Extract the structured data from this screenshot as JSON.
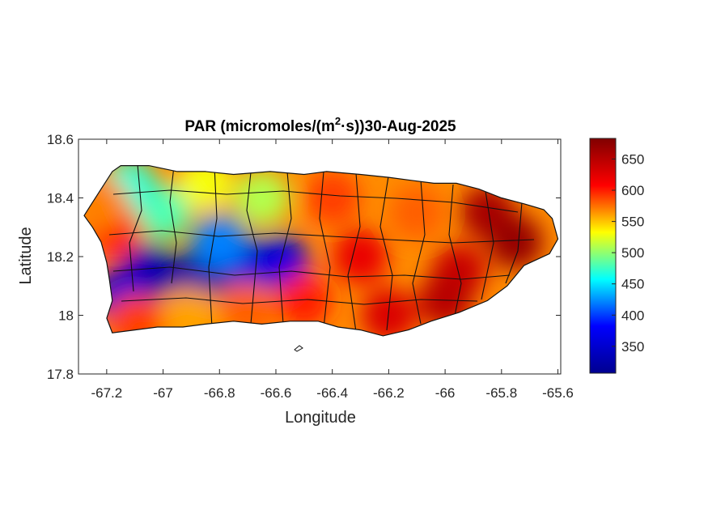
{
  "title_main": "PAR (micromoles/(m",
  "title_sup": "2",
  "title_rest": "·s))30-Aug-2025",
  "xlabel": "Longitude",
  "ylabel": "Latitude",
  "x_ticks": [
    "-67.2",
    "-67",
    "-66.8",
    "-66.6",
    "-66.4",
    "-66.2",
    "-66",
    "-65.8",
    "-65.6"
  ],
  "y_ticks": [
    "18.6",
    "18.4",
    "18.2",
    "18",
    "17.8"
  ],
  "colorbar_ticks": [
    "650",
    "600",
    "550",
    "500",
    "450",
    "400",
    "350"
  ],
  "colors": {
    "colormap": [
      "#00008f",
      "#0000ff",
      "#00ffff",
      "#ffff00",
      "#ff0000",
      "#800000"
    ]
  },
  "chart_data": {
    "type": "heatmap",
    "title": "PAR (micromoles/(m2·s))30-Aug-2025",
    "xlabel": "Longitude",
    "ylabel": "Latitude",
    "xlim": [
      -67.3,
      -65.59
    ],
    "ylim": [
      17.8,
      18.6
    ],
    "x_ticks": [
      -67.2,
      -67.0,
      -66.8,
      -66.6,
      -66.4,
      -66.2,
      -66.0,
      -65.8,
      -65.6
    ],
    "y_ticks": [
      17.8,
      18.0,
      18.2,
      18.4,
      18.6
    ],
    "colorbar": {
      "min": 307,
      "max": 683,
      "ticks": [
        350,
        400,
        450,
        500,
        550,
        600,
        650
      ],
      "colormap": "jet"
    },
    "outline": [
      [
        -67.26,
        18.37
      ],
      [
        -67.22,
        18.43
      ],
      [
        -67.18,
        18.49
      ],
      [
        -67.15,
        18.51
      ],
      [
        -67.05,
        18.51
      ],
      [
        -66.95,
        18.49
      ],
      [
        -66.85,
        18.49
      ],
      [
        -66.75,
        18.48
      ],
      [
        -66.62,
        18.49
      ],
      [
        -66.5,
        18.48
      ],
      [
        -66.42,
        18.49
      ],
      [
        -66.3,
        18.48
      ],
      [
        -66.2,
        18.47
      ],
      [
        -66.12,
        18.46
      ],
      [
        -66.04,
        18.45
      ],
      [
        -65.96,
        18.45
      ],
      [
        -65.88,
        18.43
      ],
      [
        -65.8,
        18.4
      ],
      [
        -65.72,
        18.38
      ],
      [
        -65.65,
        18.36
      ],
      [
        -65.62,
        18.33
      ],
      [
        -65.6,
        18.26
      ],
      [
        -65.63,
        18.21
      ],
      [
        -65.72,
        18.17
      ],
      [
        -65.78,
        18.1
      ],
      [
        -65.85,
        18.05
      ],
      [
        -65.95,
        18.01
      ],
      [
        -66.05,
        17.98
      ],
      [
        -66.13,
        17.95
      ],
      [
        -66.22,
        17.93
      ],
      [
        -66.3,
        17.95
      ],
      [
        -66.38,
        17.96
      ],
      [
        -66.45,
        17.98
      ],
      [
        -66.55,
        17.98
      ],
      [
        -66.65,
        17.97
      ],
      [
        -66.75,
        17.98
      ],
      [
        -66.85,
        17.97
      ],
      [
        -66.93,
        17.96
      ],
      [
        -67.02,
        17.96
      ],
      [
        -67.1,
        17.95
      ],
      [
        -67.18,
        17.94
      ],
      [
        -67.2,
        17.99
      ],
      [
        -67.18,
        18.05
      ],
      [
        -67.19,
        18.12
      ],
      [
        -67.2,
        18.18
      ],
      [
        -67.22,
        18.25
      ],
      [
        -67.25,
        18.3
      ],
      [
        -67.28,
        18.34
      ]
    ],
    "features": [
      {
        "lon": -66.87,
        "lat": 18.14,
        "value": 320
      },
      {
        "lon": -67.05,
        "lat": 18.15,
        "value": 330
      },
      {
        "lon": -67.15,
        "lat": 18.07,
        "value": 350
      },
      {
        "lon": -66.7,
        "lat": 18.17,
        "value": 350
      },
      {
        "lon": -66.58,
        "lat": 18.18,
        "value": 360
      },
      {
        "lon": -66.8,
        "lat": 18.25,
        "value": 420
      },
      {
        "lon": -67.0,
        "lat": 18.35,
        "value": 480
      },
      {
        "lon": -67.12,
        "lat": 18.44,
        "value": 470
      },
      {
        "lon": -66.65,
        "lat": 18.4,
        "value": 510
      },
      {
        "lon": -66.85,
        "lat": 18.45,
        "value": 530
      },
      {
        "lon": -67.17,
        "lat": 18.29,
        "value": 600
      },
      {
        "lon": -67.22,
        "lat": 18.38,
        "value": 570
      },
      {
        "lon": -67.1,
        "lat": 17.98,
        "value": 590
      },
      {
        "lon": -66.9,
        "lat": 18.0,
        "value": 560
      },
      {
        "lon": -66.7,
        "lat": 18.02,
        "value": 580
      },
      {
        "lon": -66.5,
        "lat": 18.05,
        "value": 600
      },
      {
        "lon": -66.2,
        "lat": 18.0,
        "value": 630
      },
      {
        "lon": -66.3,
        "lat": 18.2,
        "value": 620
      },
      {
        "lon": -66.1,
        "lat": 18.35,
        "value": 580
      },
      {
        "lon": -65.85,
        "lat": 18.35,
        "value": 660
      },
      {
        "lon": -65.75,
        "lat": 18.25,
        "value": 670
      },
      {
        "lon": -65.95,
        "lat": 18.15,
        "value": 640
      },
      {
        "lon": -66.0,
        "lat": 18.05,
        "value": 650
      },
      {
        "lon": -66.4,
        "lat": 18.4,
        "value": 590
      }
    ]
  }
}
